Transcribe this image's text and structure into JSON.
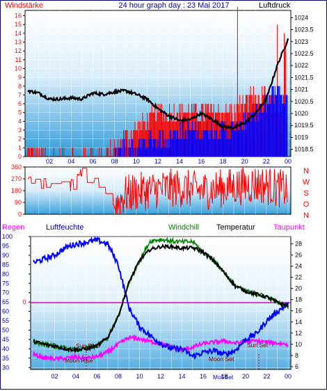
{
  "header": {
    "left": "Windstärke",
    "title": "24 hour graph day : 23 Mai 2017",
    "right": "Luftdruck"
  },
  "direction_labels": [
    "N",
    "W",
    "S",
    "O",
    "N"
  ],
  "bottom_header": {
    "regen": "Regen",
    "luftfeuchte": "Luftfeuchte",
    "windchill": "Windchill",
    "temperatur": "Temperatur",
    "taupunkt": "Taupunkt"
  },
  "annotations": {
    "sun_rise": "Sun Rise",
    "moon_rise": "Moon Rise",
    "sun_set": "Sun Set",
    "moon_set": "Moon Set",
    "moon_set_axis": "Mo5Set"
  },
  "colors": {
    "wind": "#ff0000",
    "gust": "#0000ff",
    "pressure": "#000000",
    "direction": "#ff0000",
    "humidity": "#0000ff",
    "temperature": "#000000",
    "windchill": "#008000",
    "dewpoint": "#ff00ff",
    "rain": "#ff0000",
    "title": "#0000a0"
  },
  "chart_data": [
    {
      "type": "bar",
      "name": "wind-pressure",
      "x_tick_labels": [
        "02",
        "04",
        "06",
        "08",
        "10",
        "12",
        "14",
        "16",
        "18",
        "20",
        "22",
        "00"
      ],
      "y_left_ticks": [
        "0",
        "1",
        "2",
        "3",
        "4",
        "5",
        "6",
        "7",
        "8",
        "9",
        "10",
        "11",
        "12",
        "13",
        "14",
        "15",
        "16"
      ],
      "y_left_range": [
        0,
        16.6
      ],
      "y_right_ticks": [
        "1018.5",
        "1019",
        "1019.5",
        "1020",
        "1020.5",
        "1021",
        "1021.5",
        "1022",
        "1022.5",
        "1023",
        "1023.5",
        "1024"
      ],
      "y_right_range": [
        1018.2,
        1024.3
      ],
      "pressure_hourly": [
        1020.95,
        1020.85,
        1020.6,
        1020.6,
        1020.65,
        1020.6,
        1020.85,
        1020.8,
        1020.9,
        1020.95,
        1020.8,
        1020.6,
        1020.2,
        1019.9,
        1019.7,
        1019.75,
        1020.0,
        1019.75,
        1019.45,
        1019.4,
        1019.6,
        1020.0,
        1020.6,
        1022.0,
        1023.1,
        1023.4
      ],
      "wind_hourly": [
        1,
        0,
        0,
        0,
        0,
        0,
        0,
        0,
        1,
        2,
        3,
        4,
        5,
        5,
        5,
        5,
        5,
        5,
        5,
        5,
        6,
        7,
        7,
        6,
        5
      ],
      "gust_hourly": [
        0,
        0,
        0,
        0,
        0,
        0,
        0,
        0,
        0,
        1,
        1,
        2,
        2,
        2,
        3,
        3,
        3,
        3,
        3,
        3,
        4,
        5,
        6,
        8,
        6
      ]
    },
    {
      "type": "line",
      "name": "wind-direction",
      "y_ticks": [
        "0",
        "90",
        "180",
        "270",
        "360"
      ],
      "y_range": [
        0,
        360
      ],
      "direction_hourly": [
        270,
        260,
        180,
        200,
        230,
        300,
        260,
        110,
        60,
        150,
        170,
        180,
        190,
        200,
        200,
        190,
        180,
        190,
        200,
        210,
        220,
        230,
        220,
        200,
        190
      ]
    },
    {
      "type": "line",
      "name": "humidity-temperature",
      "y_left_ticks": [
        "30",
        "35",
        "40",
        "45",
        "50",
        "55",
        "60",
        "65",
        "70",
        "75",
        "80",
        "85",
        "90",
        "95",
        "100"
      ],
      "y_left_range": [
        29,
        100
      ],
      "y_right_ticks": [
        "6",
        "8",
        "10",
        "12",
        "14",
        "16",
        "18",
        "20",
        "22",
        "24",
        "26",
        "28"
      ],
      "y_right_range": [
        5.5,
        29.3
      ],
      "rain_axis_label": "0",
      "humidity_hourly": [
        86,
        88,
        90,
        94,
        96,
        97,
        98,
        96,
        85,
        62,
        52,
        47,
        43,
        40,
        40,
        36,
        38,
        39,
        37,
        39,
        45,
        48,
        55,
        60,
        64,
        67
      ],
      "temperature_hourly": [
        10.5,
        10.0,
        9.7,
        9.2,
        9.0,
        9.2,
        9.7,
        11.2,
        15.0,
        21.0,
        25.0,
        27.0,
        27.5,
        27.5,
        27.2,
        27.3,
        26.5,
        25.0,
        22.8,
        20.5,
        19.5,
        19.0,
        18.5,
        17.5,
        16.8,
        16.3
      ],
      "windchill_hourly": [
        10.5,
        10.0,
        9.7,
        9.2,
        9.0,
        9.2,
        9.7,
        11.2,
        15.0,
        21.0,
        25.0,
        28.5,
        28.8,
        28.5,
        28.3,
        28.4,
        26.5,
        25.0,
        22.8,
        20.5,
        19.5,
        19.0,
        18.5,
        17.5,
        16.8,
        16.3
      ],
      "dewpoint_hourly": [
        8.2,
        7.6,
        7.4,
        7.5,
        7.7,
        7.5,
        7.8,
        8.6,
        10.0,
        11.2,
        11.0,
        10.5,
        10.1,
        9.6,
        9.0,
        9.5,
        10.1,
        10.4,
        10.6,
        10.2,
        10.5,
        10.6,
        10.4,
        10.2,
        10.0,
        9.9
      ],
      "rain_hourly": [
        0,
        0,
        0,
        0,
        0,
        0,
        0,
        0,
        0,
        0,
        0,
        0,
        0,
        0,
        0,
        0,
        0,
        0,
        0,
        0,
        0,
        0,
        0,
        0,
        0,
        0
      ]
    }
  ]
}
